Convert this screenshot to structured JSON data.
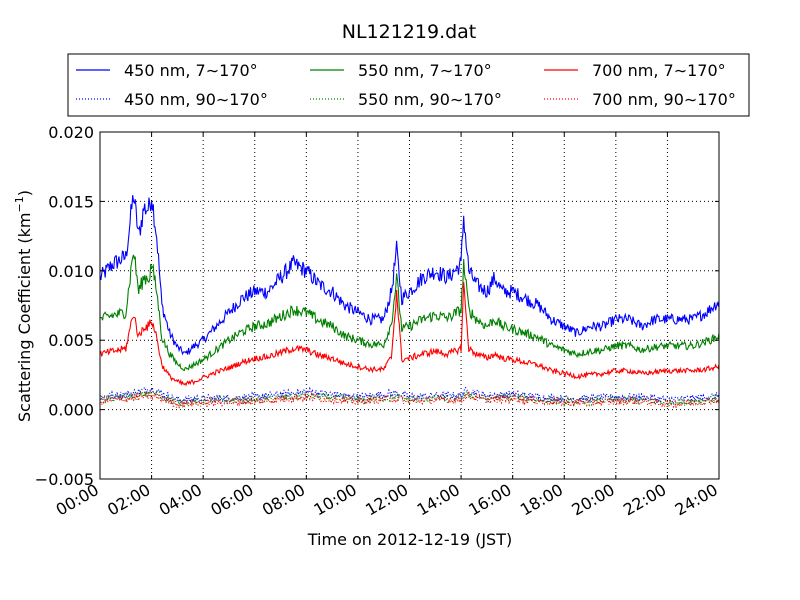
{
  "chart_data": {
    "type": "line",
    "title": "NL121219.dat",
    "xlabel": "Time on 2012-12-19 (JST)",
    "ylabel_main": "Scattering Coefficient (km",
    "ylabel_sup": "−1",
    "ylabel_end": ")",
    "xlim": [
      0,
      24
    ],
    "ylim": [
      -0.005,
      0.02
    ],
    "x_unit": "hours (JST)",
    "xticks": [
      0,
      2,
      4,
      6,
      8,
      10,
      12,
      14,
      16,
      18,
      20,
      22,
      24
    ],
    "xtick_labels": [
      "00:00",
      "02:00",
      "04:00",
      "06:00",
      "08:00",
      "10:00",
      "12:00",
      "14:00",
      "16:00",
      "18:00",
      "20:00",
      "22:00",
      "24:00"
    ],
    "yticks": [
      -0.005,
      0.0,
      0.005,
      0.01,
      0.015,
      0.02
    ],
    "ytick_labels": [
      "−0.005",
      "0.000",
      "0.005",
      "0.010",
      "0.015",
      "0.020"
    ],
    "grid": true,
    "legend_position": "top, above plot, 3 columns",
    "series": [
      {
        "name": "450 nm, 7∼170°",
        "color": "#0000ff",
        "style": "solid",
        "x": [
          0,
          0.5,
          1,
          1.3,
          1.5,
          1.7,
          1.9,
          2.0,
          2.2,
          2.4,
          2.7,
          3,
          3.3,
          3.6,
          4,
          4.5,
          5,
          5.5,
          6,
          6.5,
          7,
          7.5,
          8,
          8.5,
          9,
          9.5,
          10,
          10.5,
          11,
          11.3,
          11.5,
          11.7,
          12,
          12.5,
          13,
          13.5,
          14,
          14.1,
          14.3,
          14.6,
          15,
          15.3,
          15.6,
          16,
          16.5,
          17,
          17.5,
          18,
          18.5,
          19,
          19.5,
          20,
          20.5,
          21,
          21.5,
          22,
          22.5,
          23,
          23.5,
          24
        ],
        "y": [
          0.0095,
          0.0105,
          0.011,
          0.0155,
          0.0125,
          0.0145,
          0.0145,
          0.0155,
          0.0125,
          0.0075,
          0.0055,
          0.0045,
          0.004,
          0.0045,
          0.005,
          0.006,
          0.007,
          0.008,
          0.0085,
          0.0085,
          0.0095,
          0.0105,
          0.01,
          0.009,
          0.0085,
          0.0075,
          0.007,
          0.0065,
          0.0065,
          0.0085,
          0.0115,
          0.008,
          0.0085,
          0.0095,
          0.01,
          0.0095,
          0.0105,
          0.014,
          0.01,
          0.009,
          0.0085,
          0.0095,
          0.0085,
          0.0085,
          0.008,
          0.0075,
          0.0065,
          0.006,
          0.0055,
          0.006,
          0.006,
          0.0065,
          0.0065,
          0.006,
          0.0065,
          0.0065,
          0.0065,
          0.0065,
          0.007,
          0.0078
        ]
      },
      {
        "name": "450 nm, 90∼170°",
        "color": "#0000ff",
        "style": "dotted",
        "x": [
          0,
          1,
          1.5,
          2,
          2.5,
          3,
          4,
          6,
          8,
          10,
          11.5,
          12,
          13,
          14,
          14.2,
          15,
          16,
          17,
          18,
          19,
          20,
          21,
          22,
          23,
          24
        ],
        "y": [
          0.0009,
          0.0011,
          0.0013,
          0.0015,
          0.0011,
          0.0007,
          0.0008,
          0.0009,
          0.0013,
          0.0009,
          0.0012,
          0.0009,
          0.001,
          0.001,
          0.0014,
          0.001,
          0.0011,
          0.0009,
          0.0008,
          0.0008,
          0.0009,
          0.0009,
          0.0007,
          0.0008,
          0.001
        ]
      },
      {
        "name": "550 nm, 7∼170°",
        "color": "#008000",
        "style": "solid",
        "x": [
          0,
          0.5,
          1,
          1.3,
          1.5,
          1.7,
          1.9,
          2.0,
          2.2,
          2.4,
          2.7,
          3,
          3.3,
          3.6,
          4,
          4.5,
          5,
          5.5,
          6,
          6.5,
          7,
          7.5,
          8,
          8.5,
          9,
          9.5,
          10,
          10.5,
          11,
          11.3,
          11.5,
          11.7,
          12,
          12.5,
          13,
          13.5,
          14,
          14.1,
          14.3,
          14.6,
          15,
          15.3,
          15.6,
          16,
          16.5,
          17,
          17.5,
          18,
          18.5,
          19,
          19.5,
          20,
          20.5,
          21,
          21.5,
          22,
          22.5,
          23,
          23.5,
          24
        ],
        "y": [
          0.0065,
          0.0068,
          0.007,
          0.0115,
          0.0085,
          0.0095,
          0.0095,
          0.0105,
          0.0085,
          0.0052,
          0.004,
          0.0033,
          0.0029,
          0.0032,
          0.0036,
          0.0043,
          0.005,
          0.0056,
          0.006,
          0.0062,
          0.0067,
          0.0072,
          0.007,
          0.0064,
          0.006,
          0.0053,
          0.005,
          0.0047,
          0.0047,
          0.0062,
          0.0095,
          0.0058,
          0.006,
          0.0065,
          0.0068,
          0.0066,
          0.0072,
          0.0105,
          0.0072,
          0.0065,
          0.006,
          0.0065,
          0.006,
          0.0058,
          0.0055,
          0.0052,
          0.0046,
          0.0043,
          0.004,
          0.0042,
          0.0043,
          0.0046,
          0.0046,
          0.0043,
          0.0045,
          0.0046,
          0.0046,
          0.0046,
          0.0049,
          0.0053
        ]
      },
      {
        "name": "550 nm, 90∼170°",
        "color": "#008000",
        "style": "dotted",
        "x": [
          0,
          1,
          1.5,
          2,
          2.5,
          3,
          4,
          6,
          8,
          10,
          11.5,
          12,
          13,
          14,
          14.2,
          15,
          16,
          17,
          18,
          19,
          20,
          21,
          22,
          23,
          24
        ],
        "y": [
          0.0007,
          0.0009,
          0.001,
          0.0012,
          0.0009,
          0.0005,
          0.0006,
          0.0007,
          0.001,
          0.0007,
          0.0009,
          0.0007,
          0.0008,
          0.0008,
          0.0011,
          0.0008,
          0.0009,
          0.0007,
          0.0006,
          0.0006,
          0.0007,
          0.0007,
          0.0005,
          0.0006,
          0.0008
        ]
      },
      {
        "name": "700 nm, 7∼170°",
        "color": "#ff0000",
        "style": "solid",
        "x": [
          0,
          0.5,
          1,
          1.3,
          1.5,
          1.7,
          1.9,
          2.0,
          2.2,
          2.4,
          2.7,
          3,
          3.3,
          3.6,
          4,
          4.5,
          5,
          5.5,
          6,
          6.5,
          7,
          7.5,
          8,
          8.5,
          9,
          9.5,
          10,
          10.5,
          11,
          11.3,
          11.5,
          11.7,
          12,
          12.5,
          13,
          13.5,
          14,
          14.1,
          14.3,
          14.6,
          15,
          15.3,
          15.6,
          16,
          16.5,
          17,
          17.5,
          18,
          18.5,
          19,
          19.5,
          20,
          20.5,
          21,
          21.5,
          22,
          22.5,
          23,
          23.5,
          24
        ],
        "y": [
          0.004,
          0.0042,
          0.0044,
          0.007,
          0.0052,
          0.006,
          0.006,
          0.0065,
          0.0052,
          0.0032,
          0.0024,
          0.002,
          0.0018,
          0.002,
          0.0023,
          0.0027,
          0.003,
          0.0034,
          0.0037,
          0.0038,
          0.0041,
          0.0044,
          0.0043,
          0.0039,
          0.0037,
          0.0033,
          0.0031,
          0.0029,
          0.0029,
          0.0038,
          0.0085,
          0.0036,
          0.0037,
          0.004,
          0.0042,
          0.004,
          0.0044,
          0.009,
          0.0044,
          0.004,
          0.0037,
          0.004,
          0.0037,
          0.0036,
          0.0034,
          0.0032,
          0.0028,
          0.0026,
          0.0024,
          0.0025,
          0.0026,
          0.0028,
          0.0028,
          0.0026,
          0.0027,
          0.0028,
          0.0028,
          0.0028,
          0.0029,
          0.0031
        ]
      },
      {
        "name": "700 nm, 90∼170°",
        "color": "#ff0000",
        "style": "dotted",
        "x": [
          0,
          1,
          1.5,
          2,
          2.5,
          3,
          4,
          6,
          8,
          10,
          11.5,
          12,
          13,
          14,
          14.2,
          15,
          16,
          17,
          18,
          19,
          20,
          21,
          22,
          23,
          24
        ],
        "y": [
          0.0006,
          0.0008,
          0.0009,
          0.001,
          0.0007,
          0.0004,
          0.0005,
          0.0006,
          0.0009,
          0.0006,
          0.0008,
          0.0006,
          0.0007,
          0.0007,
          0.001,
          0.0007,
          0.0008,
          0.0006,
          0.0005,
          0.0005,
          0.0006,
          0.0006,
          0.0004,
          0.0005,
          0.0007
        ]
      }
    ]
  }
}
